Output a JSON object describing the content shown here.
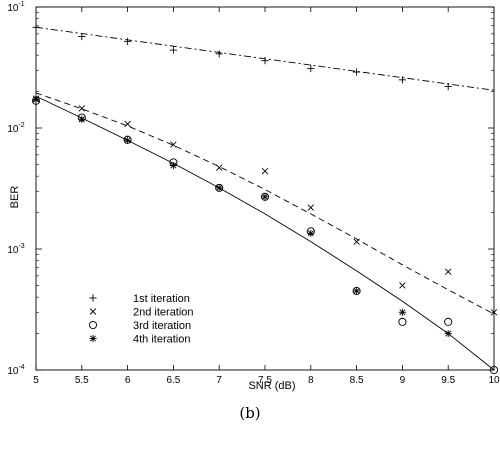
{
  "caption": "(b)",
  "chart_data": {
    "type": "scatter",
    "xlabel": "SNR (dB)",
    "ylabel": "BER",
    "x_scale": "linear",
    "y_scale": "log",
    "xlim": [
      5,
      10
    ],
    "ylim": [
      0.0001,
      0.1
    ],
    "x_ticks": [
      5,
      5.5,
      6,
      6.5,
      7,
      7.5,
      8,
      8.5,
      9,
      9.5,
      10
    ],
    "y_ticks": [
      {
        "value": 0.0001,
        "base": "10",
        "exp": "-4"
      },
      {
        "value": 0.001,
        "base": "10",
        "exp": "-3"
      },
      {
        "value": 0.01,
        "base": "10",
        "exp": "-2"
      },
      {
        "value": 0.1,
        "base": "10",
        "exp": "-1"
      }
    ],
    "grid": false,
    "legend_position": "bottom-left",
    "series": [
      {
        "name": "1st iteration",
        "marker": "plus",
        "x": [
          5,
          5.5,
          6,
          6.5,
          7,
          7.5,
          8,
          8.5,
          9,
          9.5
        ],
        "y": [
          0.068,
          0.057,
          0.052,
          0.044,
          0.041,
          0.036,
          0.031,
          0.029,
          0.025,
          0.022
        ]
      },
      {
        "name": "2nd iteration",
        "marker": "x",
        "x": [
          5,
          5.5,
          6,
          6.5,
          7,
          7.5,
          8,
          8.5,
          9,
          9.5,
          10
        ],
        "y": [
          0.0175,
          0.0145,
          0.0108,
          0.0073,
          0.0047,
          0.0044,
          0.0022,
          0.00115,
          0.0005,
          0.00065,
          0.0003
        ]
      },
      {
        "name": "3rd iteration",
        "marker": "circle",
        "x": [
          5,
          5.5,
          6,
          6.5,
          7,
          7.5,
          8,
          8.5,
          9,
          9.5,
          10
        ],
        "y": [
          0.0168,
          0.0122,
          0.008,
          0.0052,
          0.0032,
          0.0027,
          0.0014,
          0.00045,
          0.00025,
          0.00025,
          0.0001
        ]
      },
      {
        "name": "4th iteration",
        "marker": "asterisk",
        "x": [
          5,
          5.5,
          6,
          6.5,
          7,
          7.5,
          8,
          8.5,
          9,
          9.5
        ],
        "y": [
          0.0172,
          0.0118,
          0.0079,
          0.0049,
          0.0032,
          0.0027,
          0.00135,
          0.00045,
          0.0003,
          0.0002
        ]
      }
    ],
    "curves": [
      {
        "style": "dash-dot",
        "x": [
          5,
          10
        ],
        "y": [
          0.068,
          0.0205
        ]
      },
      {
        "style": "dashed",
        "x": [
          5,
          5.5,
          6,
          6.5,
          7,
          7.5,
          8,
          8.5,
          9,
          9.5,
          10
        ],
        "y": [
          0.0195,
          0.0144,
          0.0104,
          0.0072,
          0.0048,
          0.0031,
          0.00195,
          0.00121,
          0.00074,
          0.00046,
          0.00029
        ]
      },
      {
        "style": "solid",
        "x": [
          5,
          5.5,
          6,
          6.5,
          7,
          7.5,
          8,
          8.5,
          9,
          9.5,
          10
        ],
        "y": [
          0.0183,
          0.0121,
          0.0079,
          0.0051,
          0.0032,
          0.00195,
          0.00115,
          0.00066,
          0.00037,
          0.0002,
          0.0001
        ]
      }
    ]
  }
}
